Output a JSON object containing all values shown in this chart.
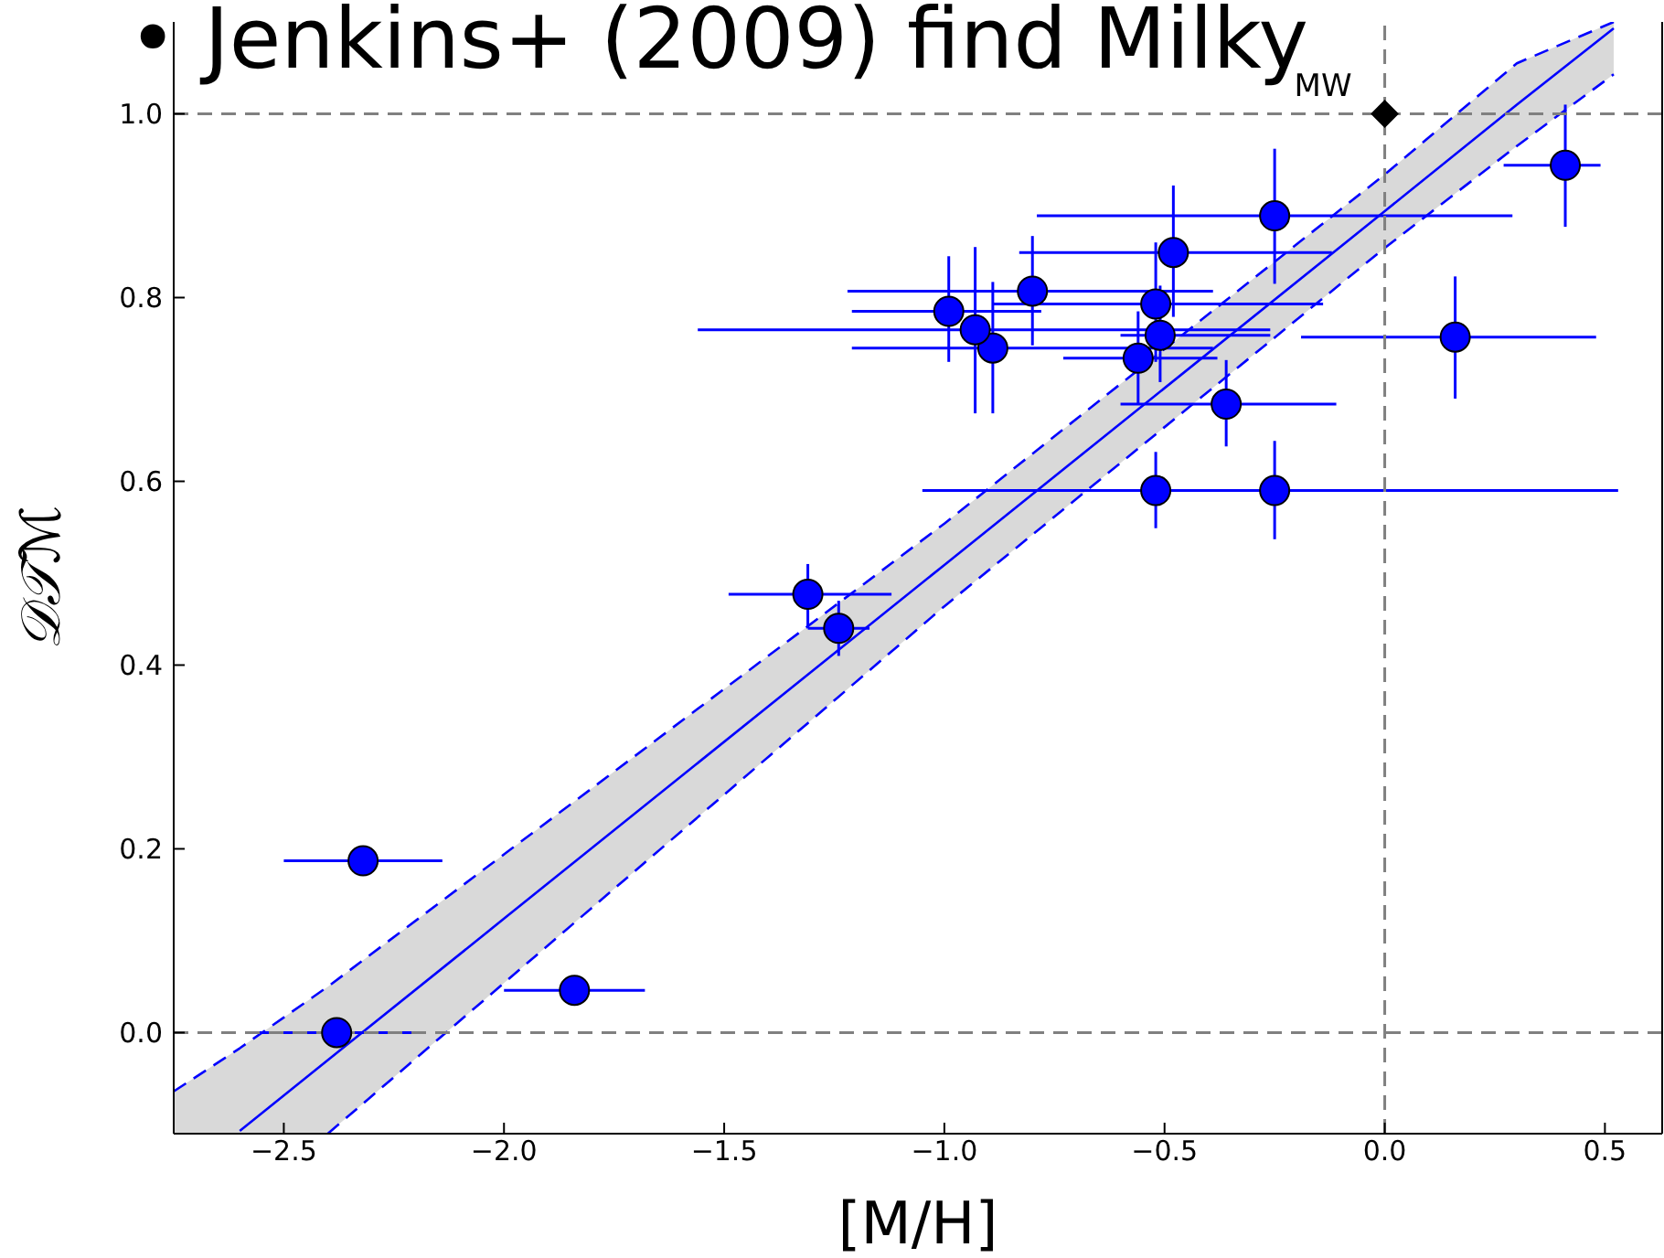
{
  "chart_data": {
    "type": "scatter",
    "xlabel": "[M/H]",
    "ylabel": "𝒟𝒯ℳ",
    "xlim": [
      -2.75,
      0.63
    ],
    "ylim": [
      -0.11,
      1.1
    ],
    "xticks": [
      {
        "value": -2.5,
        "label": "−2.5"
      },
      {
        "value": -2,
        "label": "−2.0"
      },
      {
        "value": -1.5,
        "label": "−1.5"
      },
      {
        "value": -1,
        "label": "−1.0"
      },
      {
        "value": -0.5,
        "label": "−0.5"
      },
      {
        "value": 0,
        "label": "0.0"
      },
      {
        "value": 0.5,
        "label": "0.5"
      }
    ],
    "yticks": [
      {
        "value": 0,
        "label": "0.0"
      },
      {
        "value": 0.2,
        "label": "0.2"
      },
      {
        "value": 0.4,
        "label": "0.4"
      },
      {
        "value": 0.6,
        "label": "0.6"
      },
      {
        "value": 0.8,
        "label": "0.8"
      },
      {
        "value": 1,
        "label": "1.0"
      }
    ],
    "grid": false,
    "legend": false,
    "series": [
      {
        "type": "line",
        "color": "#0000ff",
        "marker": "none",
        "line_style": "solid",
        "x": [
          -2.75,
          -2.6,
          -2.4,
          -2,
          -1,
          0,
          0.3,
          0.52
        ],
        "values": [
          null,
          -0.107,
          -0.03,
          0.124,
          0.509,
          0.894,
          1.01,
          1.093
        ],
        "lower": [
          -0.11,
          -0.11,
          -0.11,
          0.054,
          0.464,
          0.854,
          0.965,
          1.043
        ],
        "upper": [
          -0.064,
          -0.017,
          0.05,
          0.194,
          0.554,
          0.934,
          1.055,
          1.1
        ]
      },
      {
        "type": "line",
        "color": "#0000ff",
        "marker": "none",
        "line_style": "dashed",
        "x": [
          -2.75,
          -2.6,
          -2.4,
          -2,
          -1,
          0,
          0.3,
          0.52
        ],
        "values": [
          -0.064,
          -0.017,
          0.05,
          0.194,
          0.554,
          0.934,
          1.055,
          1.1
        ]
      },
      {
        "type": "line",
        "color": "#0000ff",
        "marker": "none",
        "line_style": "dashed",
        "x": [
          -2.4,
          -2,
          -1,
          0,
          0.3,
          0.52
        ],
        "values": [
          -0.11,
          0.054,
          0.464,
          0.854,
          0.965,
          1.043
        ]
      },
      {
        "color": "#0000ff",
        "marker": "circle",
        "x": [
          -2.32,
          -2.38,
          -1.84,
          -1.31,
          -1.24,
          -0.99,
          -0.89,
          -0.8,
          -0.48,
          -0.25,
          -0.52,
          -0.51,
          -0.56,
          -0.36,
          0.16,
          -0.52
        ],
        "values": [
          0.187,
          0.0,
          0.046,
          0.477,
          0.44,
          0.785,
          0.745,
          0.807,
          0.849,
          0.889,
          0.793,
          0.759,
          0.734,
          0.684,
          0.757,
          0.59
        ],
        "xerrors": [
          [
            -2.5,
            -2.14
          ],
          [
            -2.56,
            -2.2
          ],
          [
            -2.0,
            -1.68
          ],
          [
            -1.49,
            -1.12
          ],
          [
            -1.31,
            -1.17
          ],
          [
            -1.21,
            -0.78
          ],
          [
            -1.21,
            -0.39
          ],
          [
            -1.22,
            -0.39
          ],
          [
            -0.83,
            -0.12
          ],
          [
            -0.79,
            0.29
          ],
          [
            -0.89,
            -0.14
          ],
          [
            -0.6,
            -0.26
          ],
          [
            -0.73,
            -0.38
          ],
          [
            -0.6,
            -0.11
          ],
          [
            -0.19,
            0.48
          ],
          [
            -0.69,
            -0.36
          ]
        ],
        "errors": [
          null,
          null,
          null,
          [
            0.44,
            0.51
          ],
          [
            0.41,
            0.47
          ],
          [
            0.73,
            0.845
          ],
          [
            0.674,
            0.817
          ],
          [
            0.748,
            0.867
          ],
          [
            0.779,
            0.922
          ],
          [
            0.815,
            0.962
          ],
          [
            0.73,
            0.86
          ],
          [
            0.708,
            0.813
          ],
          [
            0.684,
            0.785
          ],
          [
            0.638,
            0.732
          ],
          [
            0.69,
            0.823
          ],
          [
            0.549,
            0.632
          ]
        ]
      },
      {
        "color": "#0000ff",
        "marker": "circle",
        "x": [
          -0.93,
          -0.25,
          0.41
        ],
        "values": [
          0.765,
          0.59,
          0.944
        ],
        "xerrors": [
          [
            -1.56,
            -0.26
          ],
          [
            -1.05,
            0.53
          ],
          [
            0.27,
            0.49
          ]
        ],
        "errors": [
          [
            0.674,
            0.855
          ],
          [
            0.537,
            0.644
          ],
          [
            0.877,
            1.01
          ]
        ]
      },
      {
        "color": "#000000",
        "marker": "diamond",
        "x": [
          0
        ],
        "values": [
          1.0
        ]
      }
    ],
    "ref_lines": [
      {
        "axis": "y",
        "value": 1.0,
        "color": "#808080",
        "line_style": "dashed"
      },
      {
        "axis": "y",
        "value": 0,
        "color": "#808080",
        "line_style": "dashed"
      },
      {
        "axis": "x",
        "value": 0,
        "color": "#808080",
        "line_style": "dashed"
      }
    ],
    "annotations": [
      {
        "text": "MW",
        "x": 0,
        "y": 1.0
      },
      "• Jenkins+ (2009) find Milky"
    ]
  }
}
